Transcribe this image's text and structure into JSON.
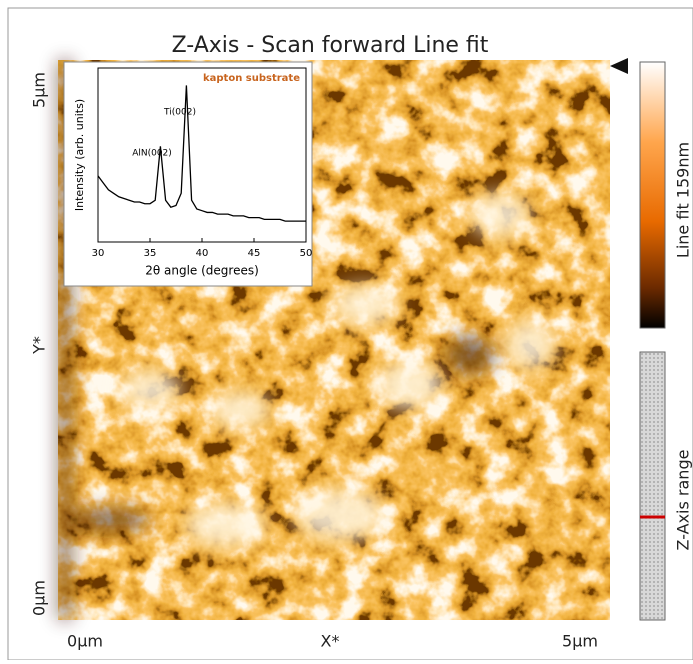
{
  "title": "Z-Axis - Scan forward   Line fit",
  "axes": {
    "y_top": "5µm",
    "y_label": "Y*",
    "y_bottom": "0µm",
    "x_left": "0µm",
    "x_label": "X*",
    "x_right": "5µm"
  },
  "colorbar_label": "Line fit 159nm",
  "range_label": "Z-Axis range",
  "chart_data": {
    "type": "line",
    "xlabel": "2θ angle (degrees)",
    "ylabel": "Intensity (arb. units)",
    "annotations": [
      "kapton substrate",
      "Ti(002)",
      "AlN(002)"
    ],
    "color": "#000000",
    "x": [
      30,
      30.5,
      31,
      31.5,
      32,
      32.5,
      33,
      33.5,
      34,
      34.5,
      35,
      35.5,
      36,
      36.5,
      37,
      37.5,
      38,
      38.5,
      39,
      39.5,
      40,
      40.5,
      41,
      41.5,
      42,
      42.5,
      43,
      43.5,
      44,
      44.5,
      45,
      45.5,
      46,
      46.5,
      47,
      47.5,
      48,
      48.5,
      49,
      49.5,
      50
    ],
    "values": [
      38,
      34,
      30,
      28,
      26,
      25,
      24,
      23,
      23,
      22,
      22,
      24,
      55,
      24,
      20,
      21,
      28,
      90,
      24,
      19,
      18,
      17,
      17,
      16,
      16,
      16,
      15,
      15,
      15,
      14,
      14,
      14,
      13,
      13,
      13,
      13,
      12,
      12,
      12,
      12,
      12
    ],
    "xlim": [
      30,
      50
    ],
    "ylim": [
      0,
      100
    ],
    "xticks": [
      30,
      35,
      40,
      45,
      50
    ]
  }
}
